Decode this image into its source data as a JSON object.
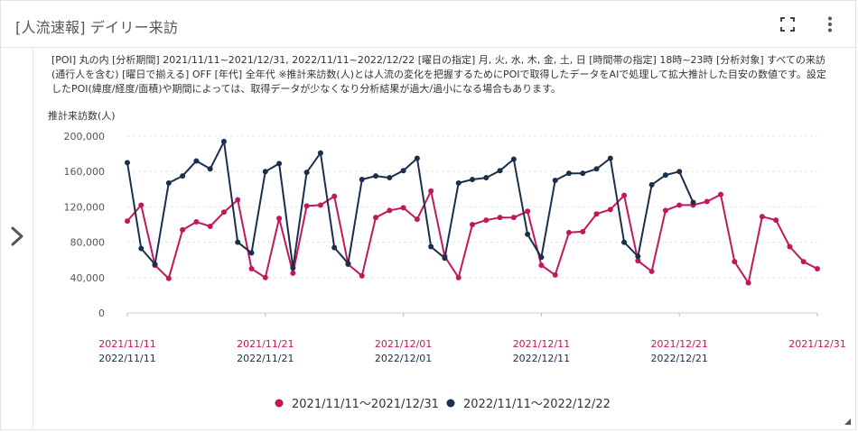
{
  "header": {
    "title": "[人流速報] デイリー来訪"
  },
  "description": "[POI] 丸の内 [分析期間] 2021/11/11~2021/12/31, 2022/11/11~2022/12/22 [曜日の指定] 月, 火, 水, 木, 金, 土, 日 [時間帯の指定] 18時~23時 [分析対象] すべての来訪 (通行人を含む) [曜日で揃える] OFF [年代] 全年代 ※推計来訪数(人)とは人流の変化を把握するためにPOIで取得したデータをAIで処理して拡大推計した目安の数値です。設定したPOI(緯度/経度/面積)や期間によっては、取得データが少なくなり分析結果が過大/過小になる場合もあります。",
  "icons": {
    "expand": "fullscreen-icon",
    "menu": "more-vertical-icon",
    "side": "chevron-right-icon"
  },
  "chart_data": {
    "type": "line",
    "ylabel": "推計来訪数(人)",
    "ylim": [
      0,
      200000
    ],
    "yticks": [
      0,
      40000,
      80000,
      120000,
      160000,
      200000
    ],
    "ytick_labels": [
      "0",
      "40,000",
      "80,000",
      "120,000",
      "160,000",
      "200,000"
    ],
    "grid": true,
    "legend_position": "bottom-center",
    "x_ticks": [
      {
        "index": 0,
        "labels": [
          "2021/11/11",
          "2022/11/11"
        ]
      },
      {
        "index": 10,
        "labels": [
          "2021/11/21",
          "2022/11/21"
        ]
      },
      {
        "index": 20,
        "labels": [
          "2021/12/01",
          "2022/12/01"
        ]
      },
      {
        "index": 30,
        "labels": [
          "2021/12/11",
          "2022/12/11"
        ]
      },
      {
        "index": 40,
        "labels": [
          "2021/12/21",
          "2022/12/21"
        ]
      },
      {
        "index": 50,
        "labels": [
          "2021/12/31"
        ]
      }
    ],
    "series": [
      {
        "name": "2021/11/11～2021/12/31",
        "color": "#c2185b",
        "values": [
          104000,
          122000,
          54000,
          39000,
          94000,
          103000,
          98000,
          114000,
          128000,
          50000,
          40000,
          107000,
          45000,
          121000,
          122000,
          132000,
          55000,
          42000,
          108000,
          116000,
          119000,
          106000,
          138000,
          64000,
          40000,
          100000,
          105000,
          108000,
          108000,
          115000,
          54000,
          43000,
          91000,
          92000,
          112000,
          117000,
          133000,
          59000,
          47000,
          116000,
          122000,
          122000,
          126000,
          134000,
          58000,
          34000,
          109000,
          105000,
          75000,
          58000,
          50000
        ]
      },
      {
        "name": "2022/11/11～2022/12/22",
        "color": "#1a2f4b",
        "values": [
          170000,
          73000,
          55000,
          147000,
          155000,
          172000,
          163000,
          194000,
          80000,
          68000,
          160000,
          169000,
          51000,
          159000,
          181000,
          74000,
          56000,
          151000,
          155000,
          153000,
          161000,
          175000,
          75000,
          62000,
          147000,
          151000,
          153000,
          161000,
          174000,
          89000,
          63000,
          150000,
          158000,
          158000,
          163000,
          175000,
          80000,
          64000,
          145000,
          156000,
          160000,
          125000
        ]
      }
    ]
  }
}
